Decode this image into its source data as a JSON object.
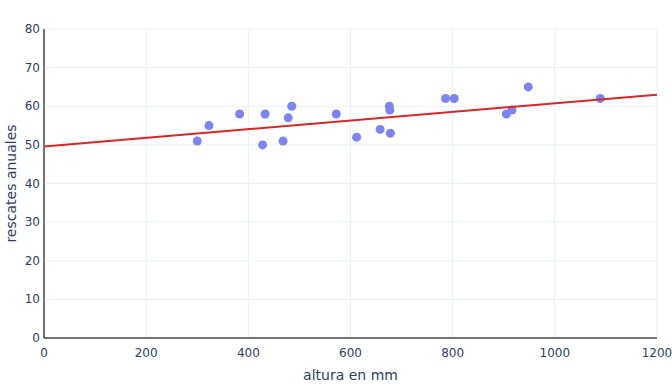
{
  "chart_data": {
    "type": "scatter",
    "x_label": "altura en mm",
    "y_label": "rescates anuales",
    "xlim": [
      0,
      1200
    ],
    "ylim": [
      0,
      80
    ],
    "xticks": [
      0,
      200,
      400,
      600,
      800,
      1000,
      1200
    ],
    "yticks": [
      0,
      10,
      20,
      30,
      40,
      50,
      60,
      70,
      80
    ],
    "grid": true,
    "series": [
      {
        "type": "scatter",
        "color": "#7c84f2",
        "marker": "circle",
        "x": [
          300,
          323,
          383,
          428,
          433,
          468,
          478,
          485,
          572,
          612,
          658,
          676,
          677,
          678,
          786,
          803,
          905,
          916,
          948,
          1089
        ],
        "values": [
          51,
          55,
          58,
          50,
          58,
          51,
          57,
          60,
          58,
          52,
          54,
          60,
          59,
          53,
          62,
          62,
          58,
          59,
          65,
          62
        ]
      },
      {
        "type": "line",
        "color": "#d62728",
        "line_style": "solid",
        "x": [
          0,
          1200
        ],
        "values": [
          49.6,
          63
        ]
      }
    ]
  }
}
